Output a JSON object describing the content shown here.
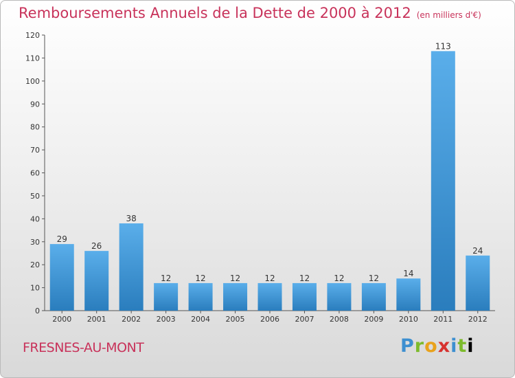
{
  "header": {
    "title": "Remboursements Annuels de la Dette de 2000 à 2012",
    "subtitle": "(en milliers d'€)"
  },
  "footer": {
    "location": "FRESNES-AU-MONT",
    "brand": "Proxiti"
  },
  "colors": {
    "title": "#c8325a",
    "bar_top": "#5aaeea",
    "bar_bottom": "#2a7dbd"
  },
  "chart_data": {
    "type": "bar",
    "categories": [
      "2000",
      "2001",
      "2002",
      "2003",
      "2004",
      "2005",
      "2006",
      "2007",
      "2008",
      "2009",
      "2010",
      "2011",
      "2012"
    ],
    "values": [
      29,
      26,
      38,
      12,
      12,
      12,
      12,
      12,
      12,
      12,
      14,
      113,
      24
    ],
    "title": "Remboursements Annuels de la Dette de 2000 à 2012",
    "subtitle": "(en milliers d'€)",
    "xlabel": "",
    "ylabel": "",
    "ylim": [
      0,
      120
    ],
    "yticks": [
      0,
      10,
      20,
      30,
      40,
      50,
      60,
      70,
      80,
      90,
      100,
      110,
      120
    ],
    "grid": false,
    "legend": "none"
  }
}
